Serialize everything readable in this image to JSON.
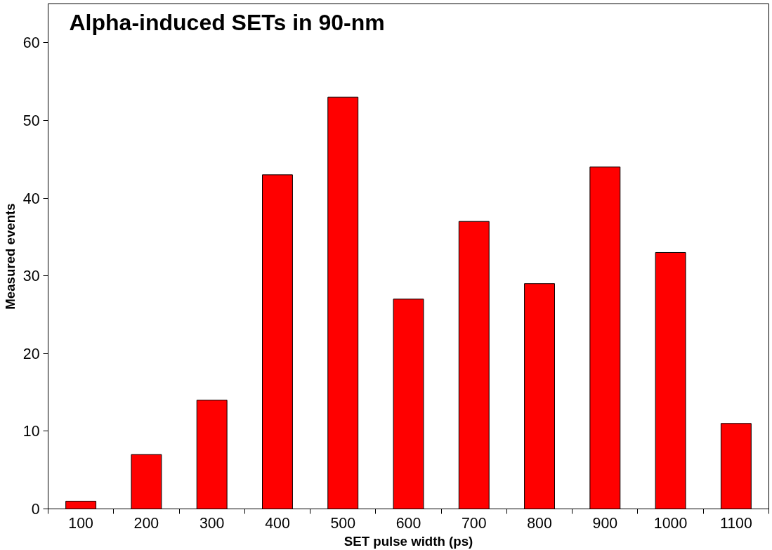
{
  "chart_data": {
    "type": "bar",
    "title": "Alpha-induced SETs in 90-nm",
    "xlabel": "SET pulse width (ps)",
    "ylabel": "Measured events",
    "categories": [
      "100",
      "200",
      "300",
      "400",
      "500",
      "600",
      "700",
      "800",
      "900",
      "1000",
      "1100"
    ],
    "values": [
      1,
      7,
      14,
      43,
      53,
      27,
      37,
      29,
      44,
      33,
      11
    ],
    "color": "#ff0000",
    "ylim": [
      0,
      65
    ],
    "yticks": [
      0,
      10,
      20,
      30,
      40,
      50,
      60
    ],
    "grid": false
  }
}
